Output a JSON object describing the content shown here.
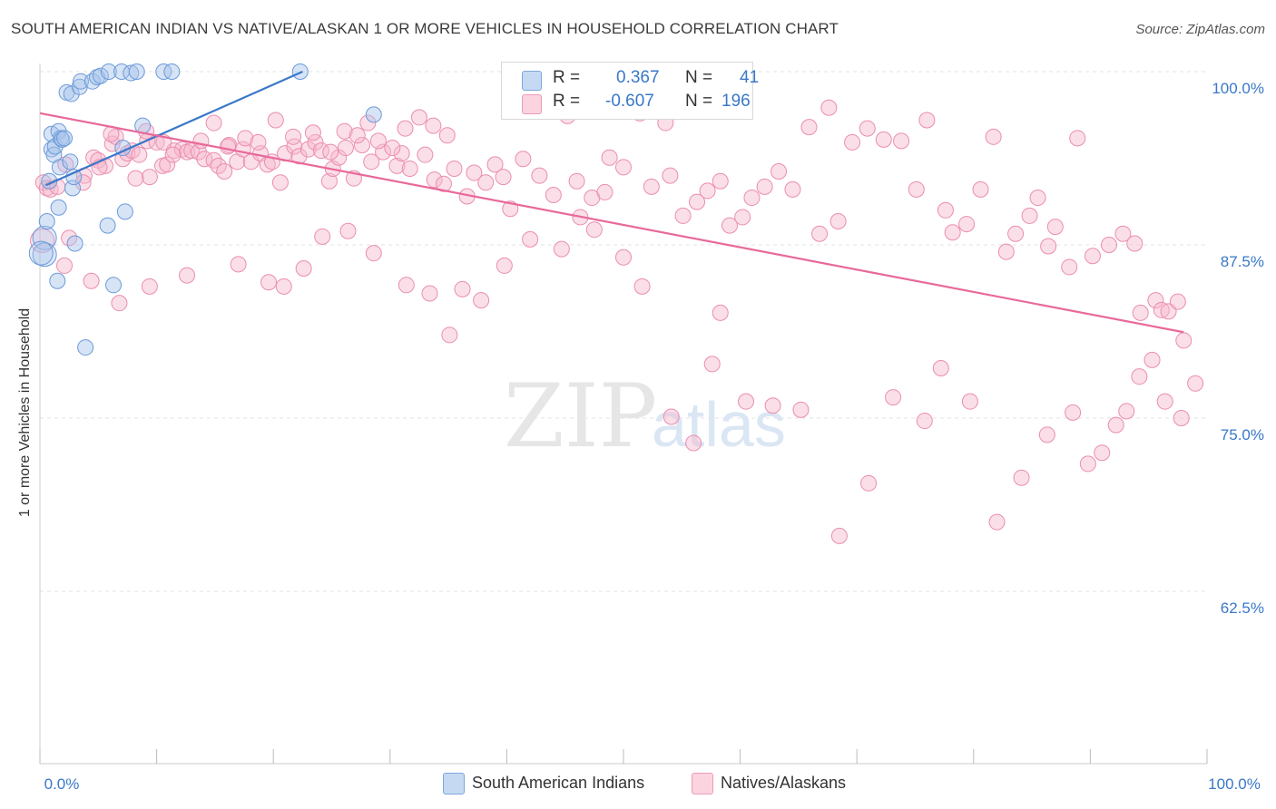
{
  "title": "SOUTH AMERICAN INDIAN VS NATIVE/ALASKAN 1 OR MORE VEHICLES IN HOUSEHOLD CORRELATION CHART",
  "source": "Source: ZipAtlas.com",
  "watermark": {
    "zip": "ZIP",
    "atlas": "atlas"
  },
  "legend_top": {
    "r_label": "R =",
    "n_label": "N =",
    "series1": {
      "r": "0.367",
      "n": "41",
      "color": "#a7c4ec"
    },
    "series2": {
      "r": "-0.607",
      "n": "196",
      "color": "#f7b8cb"
    }
  },
  "bottom_legend": {
    "series1": "South American Indians",
    "series2": "Natives/Alaskans"
  },
  "colors": {
    "blue": "#3a78c9",
    "blue_fill": "#a7c4ec",
    "pink": "#e8699a",
    "pink_fill": "#f7b8cb",
    "tick_label": "#3a78c9"
  },
  "chart_data": {
    "type": "scatter",
    "xlabel": "",
    "ylabel": "1 or more Vehicles in Household",
    "xlim": [
      0,
      100
    ],
    "ylim": [
      50,
      100
    ],
    "x_tick_labels": [
      "0.0%",
      "100.0%"
    ],
    "y_ticks": [
      62.5,
      75.0,
      87.5,
      100.0
    ],
    "y_tick_labels": [
      "62.5%",
      "75.0%",
      "87.5%",
      "100.0%"
    ],
    "series": [
      {
        "name": "South American Indians",
        "trend": {
          "x": [
            0.5,
            22.5
          ],
          "y": [
            91.8,
            100.0
          ]
        },
        "points": [
          [
            0.4,
            88.0
          ],
          [
            0.4,
            86.8
          ],
          [
            0.6,
            89.2
          ],
          [
            0.8,
            92.1
          ],
          [
            1.0,
            94.4
          ],
          [
            1.0,
            95.5
          ],
          [
            1.2,
            94.0
          ],
          [
            1.3,
            94.6
          ],
          [
            1.6,
            95.7
          ],
          [
            1.7,
            93.1
          ],
          [
            1.8,
            95.2
          ],
          [
            1.9,
            95.1
          ],
          [
            2.1,
            95.2
          ],
          [
            2.6,
            93.5
          ],
          [
            2.8,
            91.6
          ],
          [
            2.9,
            92.4
          ],
          [
            2.3,
            98.5
          ],
          [
            2.7,
            98.4
          ],
          [
            3.4,
            98.9
          ],
          [
            3.5,
            99.3
          ],
          [
            4.5,
            99.3
          ],
          [
            4.9,
            99.6
          ],
          [
            5.2,
            99.7
          ],
          [
            5.9,
            100.0
          ],
          [
            7.0,
            100.0
          ],
          [
            7.8,
            99.9
          ],
          [
            8.3,
            100.0
          ],
          [
            10.6,
            100.0
          ],
          [
            11.3,
            100.0
          ],
          [
            22.3,
            100.0
          ],
          [
            8.8,
            96.1
          ],
          [
            7.1,
            94.5
          ],
          [
            28.6,
            96.9
          ],
          [
            1.6,
            90.2
          ],
          [
            3.0,
            87.6
          ],
          [
            5.8,
            88.9
          ],
          [
            7.3,
            89.9
          ],
          [
            1.5,
            84.9
          ],
          [
            6.3,
            84.6
          ],
          [
            3.9,
            80.1
          ],
          [
            0.1,
            86.9
          ]
        ],
        "sizes": [
          3,
          3,
          1,
          1,
          1,
          1,
          1,
          1,
          1,
          1,
          1,
          1,
          1,
          1,
          1,
          1,
          1,
          1,
          1,
          1,
          1,
          1,
          1,
          1,
          1,
          1,
          1,
          1,
          1,
          1,
          1,
          1,
          1,
          1,
          1,
          1,
          1,
          1,
          1,
          1,
          3
        ]
      },
      {
        "name": "Natives/Alaskans",
        "trend": {
          "x": [
            0.0,
            98.0
          ],
          "y": [
            97.0,
            81.2
          ]
        },
        "points": [
          [
            0.3,
            92.0
          ],
          [
            0.6,
            91.6
          ],
          [
            0.9,
            91.5
          ],
          [
            1.5,
            91.7
          ],
          [
            2.2,
            93.3
          ],
          [
            3.8,
            92.5
          ],
          [
            4.6,
            93.8
          ],
          [
            5.0,
            93.6
          ],
          [
            5.6,
            93.2
          ],
          [
            6.2,
            94.8
          ],
          [
            6.5,
            95.3
          ],
          [
            7.1,
            93.7
          ],
          [
            7.5,
            94.1
          ],
          [
            7.9,
            94.3
          ],
          [
            8.5,
            94.0
          ],
          [
            9.2,
            95.0
          ],
          [
            9.4,
            92.4
          ],
          [
            10.0,
            94.9
          ],
          [
            10.5,
            93.2
          ],
          [
            10.9,
            93.3
          ],
          [
            11.5,
            94.3
          ],
          [
            12.2,
            94.4
          ],
          [
            12.6,
            94.2
          ],
          [
            13.0,
            94.3
          ],
          [
            13.6,
            94.2
          ],
          [
            14.1,
            93.7
          ],
          [
            14.9,
            93.6
          ],
          [
            15.3,
            93.2
          ],
          [
            15.8,
            92.8
          ],
          [
            16.2,
            94.7
          ],
          [
            16.9,
            93.5
          ],
          [
            17.4,
            94.4
          ],
          [
            18.1,
            93.5
          ],
          [
            18.9,
            94.1
          ],
          [
            19.5,
            93.3
          ],
          [
            19.9,
            93.5
          ],
          [
            20.6,
            92.0
          ],
          [
            21.0,
            94.1
          ],
          [
            21.8,
            94.6
          ],
          [
            22.2,
            93.9
          ],
          [
            23.0,
            94.4
          ],
          [
            23.6,
            94.9
          ],
          [
            24.1,
            94.3
          ],
          [
            24.8,
            92.1
          ],
          [
            25.1,
            93.0
          ],
          [
            25.6,
            93.8
          ],
          [
            26.2,
            94.5
          ],
          [
            26.9,
            92.3
          ],
          [
            27.6,
            94.7
          ],
          [
            28.4,
            93.5
          ],
          [
            29.4,
            94.2
          ],
          [
            30.6,
            93.2
          ],
          [
            31.0,
            94.1
          ],
          [
            31.7,
            93.0
          ],
          [
            33.0,
            94.0
          ],
          [
            33.8,
            92.2
          ],
          [
            34.6,
            91.9
          ],
          [
            35.5,
            93.0
          ],
          [
            36.6,
            91.0
          ],
          [
            37.2,
            92.7
          ],
          [
            38.2,
            92.0
          ],
          [
            39.0,
            93.3
          ],
          [
            39.7,
            92.4
          ],
          [
            40.3,
            90.1
          ],
          [
            41.4,
            93.7
          ],
          [
            42.8,
            92.5
          ],
          [
            44.0,
            91.1
          ],
          [
            45.2,
            96.8
          ],
          [
            46.0,
            92.1
          ],
          [
            47.3,
            90.9
          ],
          [
            48.4,
            91.3
          ],
          [
            48.8,
            93.8
          ],
          [
            50.0,
            93.1
          ],
          [
            51.4,
            97.0
          ],
          [
            52.4,
            91.7
          ],
          [
            53.6,
            96.3
          ],
          [
            54.0,
            92.5
          ],
          [
            55.1,
            89.6
          ],
          [
            56.3,
            90.6
          ],
          [
            57.2,
            91.4
          ],
          [
            58.3,
            92.1
          ],
          [
            59.1,
            88.9
          ],
          [
            60.2,
            89.5
          ],
          [
            61.0,
            90.9
          ],
          [
            62.1,
            91.7
          ],
          [
            63.3,
            92.8
          ],
          [
            64.5,
            91.5
          ],
          [
            65.9,
            96.0
          ],
          [
            66.8,
            88.3
          ],
          [
            67.6,
            97.4
          ],
          [
            68.4,
            89.2
          ],
          [
            69.6,
            94.9
          ],
          [
            70.9,
            95.9
          ],
          [
            72.3,
            95.1
          ],
          [
            73.8,
            95.0
          ],
          [
            75.1,
            91.5
          ],
          [
            76.0,
            96.5
          ],
          [
            77.6,
            90.0
          ],
          [
            78.2,
            88.4
          ],
          [
            79.4,
            89.0
          ],
          [
            80.6,
            91.5
          ],
          [
            81.7,
            95.3
          ],
          [
            82.8,
            87.0
          ],
          [
            83.6,
            88.3
          ],
          [
            84.8,
            89.6
          ],
          [
            85.5,
            90.9
          ],
          [
            86.4,
            87.4
          ],
          [
            87.0,
            88.8
          ],
          [
            88.2,
            85.9
          ],
          [
            88.9,
            95.2
          ],
          [
            90.2,
            86.7
          ],
          [
            91.6,
            87.5
          ],
          [
            92.8,
            88.3
          ],
          [
            93.8,
            87.6
          ],
          [
            94.3,
            82.6
          ],
          [
            95.6,
            83.5
          ],
          [
            96.1,
            82.8
          ],
          [
            96.7,
            82.7
          ],
          [
            97.5,
            83.4
          ],
          [
            98.0,
            80.6
          ],
          [
            99.0,
            77.5
          ],
          [
            97.8,
            75.0
          ],
          [
            96.4,
            76.2
          ],
          [
            95.3,
            79.2
          ],
          [
            94.2,
            78.0
          ],
          [
            93.1,
            75.5
          ],
          [
            92.2,
            74.5
          ],
          [
            91.0,
            72.5
          ],
          [
            89.8,
            71.7
          ],
          [
            88.5,
            75.4
          ],
          [
            86.3,
            73.8
          ],
          [
            84.1,
            70.7
          ],
          [
            82.0,
            67.5
          ],
          [
            79.7,
            76.2
          ],
          [
            77.2,
            78.6
          ],
          [
            75.8,
            74.8
          ],
          [
            73.1,
            76.5
          ],
          [
            71.0,
            70.3
          ],
          [
            68.5,
            66.5
          ],
          [
            65.2,
            75.6
          ],
          [
            62.8,
            75.9
          ],
          [
            60.5,
            76.2
          ],
          [
            58.3,
            82.6
          ],
          [
            57.6,
            78.9
          ],
          [
            56.0,
            73.2
          ],
          [
            54.1,
            75.1
          ],
          [
            51.6,
            84.5
          ],
          [
            50.0,
            86.6
          ],
          [
            47.5,
            88.6
          ],
          [
            46.3,
            89.5
          ],
          [
            44.7,
            87.2
          ],
          [
            42.0,
            87.9
          ],
          [
            39.8,
            86.0
          ],
          [
            37.8,
            83.5
          ],
          [
            36.2,
            84.3
          ],
          [
            35.1,
            81.0
          ],
          [
            33.4,
            84.0
          ],
          [
            31.4,
            84.6
          ],
          [
            28.6,
            86.9
          ],
          [
            26.4,
            88.5
          ],
          [
            24.2,
            88.1
          ],
          [
            22.6,
            85.8
          ],
          [
            20.9,
            84.5
          ],
          [
            19.6,
            84.8
          ],
          [
            17.0,
            86.1
          ],
          [
            12.6,
            85.3
          ],
          [
            9.4,
            84.5
          ],
          [
            6.8,
            83.3
          ],
          [
            4.4,
            84.9
          ],
          [
            2.1,
            86.0
          ],
          [
            0.2,
            87.8
          ],
          [
            2.5,
            88.0
          ],
          [
            3.7,
            92.0
          ],
          [
            5.1,
            93.1
          ],
          [
            6.1,
            95.5
          ],
          [
            8.2,
            92.3
          ],
          [
            9.1,
            95.7
          ],
          [
            10.6,
            94.9
          ],
          [
            11.4,
            94.0
          ],
          [
            13.8,
            95.0
          ],
          [
            14.9,
            96.3
          ],
          [
            16.1,
            94.6
          ],
          [
            17.6,
            95.2
          ],
          [
            18.7,
            94.9
          ],
          [
            20.2,
            96.5
          ],
          [
            21.7,
            95.3
          ],
          [
            23.4,
            95.6
          ],
          [
            24.9,
            94.2
          ],
          [
            26.1,
            95.7
          ],
          [
            27.2,
            95.4
          ],
          [
            28.1,
            96.3
          ],
          [
            29.0,
            95.0
          ],
          [
            30.2,
            94.5
          ],
          [
            31.3,
            95.9
          ],
          [
            32.5,
            96.7
          ],
          [
            33.7,
            96.1
          ],
          [
            34.9,
            95.4
          ]
        ],
        "sizes": [
          1,
          1,
          1,
          1,
          1,
          1,
          1,
          1,
          1,
          1,
          1,
          1,
          1,
          1,
          1,
          1,
          1,
          1,
          1,
          1,
          1,
          1,
          1,
          1,
          1,
          1,
          1,
          1,
          1,
          1,
          1,
          1,
          1,
          1,
          1,
          1,
          1,
          1,
          1,
          1,
          1,
          1,
          1,
          1,
          1,
          1,
          1,
          1,
          1,
          1,
          1,
          1,
          1,
          1,
          1,
          1,
          1,
          1,
          1,
          1,
          1,
          1,
          1,
          1,
          1,
          1,
          1,
          1,
          1,
          1,
          1,
          1,
          1,
          1,
          1,
          1,
          1,
          1,
          1,
          1,
          1,
          1,
          1,
          1,
          1,
          1,
          1,
          1,
          1,
          1,
          1,
          1,
          1,
          1,
          1,
          1,
          1,
          1,
          1,
          1,
          1,
          1,
          1,
          1,
          1,
          1,
          1,
          1,
          1,
          1,
          1,
          1,
          1,
          1,
          1,
          1,
          1,
          1,
          1,
          1,
          1,
          1,
          1,
          1,
          1,
          1,
          1,
          1,
          1,
          1,
          1,
          1,
          1,
          1,
          1,
          1,
          1,
          1,
          1,
          1,
          1,
          1,
          1,
          1,
          1,
          1,
          1,
          1,
          1,
          1,
          1,
          1,
          1,
          1,
          1,
          1,
          1,
          1,
          1,
          1,
          1,
          1,
          1,
          1,
          1,
          1,
          1,
          1,
          1,
          1,
          3,
          1,
          1,
          1,
          1,
          1,
          1,
          1,
          1,
          1,
          1,
          1,
          1,
          1,
          1,
          1,
          1,
          1,
          1,
          1,
          1,
          1,
          1,
          1,
          1,
          1
        ]
      }
    ]
  }
}
